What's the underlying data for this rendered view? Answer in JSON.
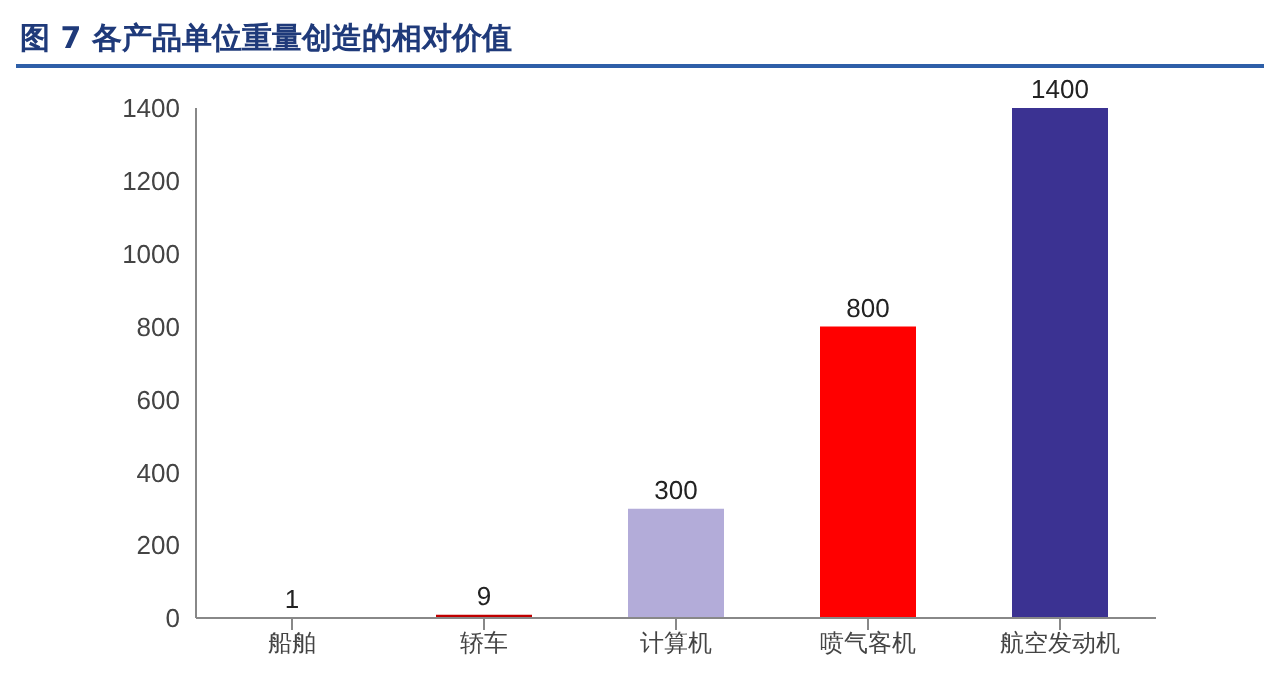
{
  "chart_data": {
    "type": "bar",
    "title": "图 7 各产品单位重量创造的相对价值",
    "categories": [
      "船舶",
      "轿车",
      "计算机",
      "喷气客机",
      "航空发动机"
    ],
    "values": [
      1,
      9,
      300,
      800,
      1400
    ],
    "colors": [
      "#c0504d",
      "#c00000",
      "#b3acd9",
      "#ff0000",
      "#3b3292"
    ],
    "ylim": [
      0,
      1400
    ],
    "yticks": [
      0,
      200,
      400,
      600,
      800,
      1000,
      1200,
      1400
    ],
    "grid": false,
    "data_labels": true
  }
}
